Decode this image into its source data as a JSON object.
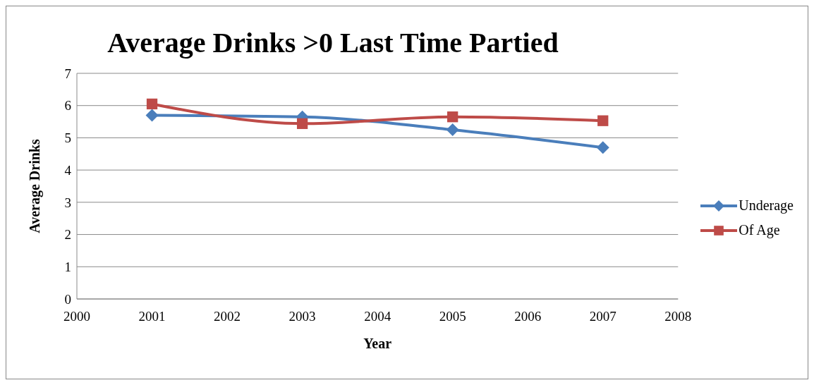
{
  "chart_data": {
    "type": "line",
    "title": "Average Drinks >0 Last Time Partied",
    "xlabel": "Year",
    "ylabel": "Average Drinks",
    "x": [
      2001,
      2003,
      2005,
      2007
    ],
    "series": [
      {
        "name": "Underage",
        "color": "#4a7ebb",
        "marker": "diamond",
        "values": [
          5.7,
          5.65,
          5.25,
          4.7
        ]
      },
      {
        "name": "Of Age",
        "color": "#be4b48",
        "marker": "square",
        "values": [
          6.05,
          5.44,
          5.65,
          5.53
        ]
      }
    ],
    "xlim": [
      2000,
      2008
    ],
    "xticks": [
      2000,
      2001,
      2002,
      2003,
      2004,
      2005,
      2006,
      2007,
      2008
    ],
    "ylim": [
      0,
      7
    ],
    "yticks": [
      0,
      1,
      2,
      3,
      4,
      5,
      6,
      7
    ],
    "grid": "y",
    "legend": "right",
    "line_style": "solid"
  }
}
